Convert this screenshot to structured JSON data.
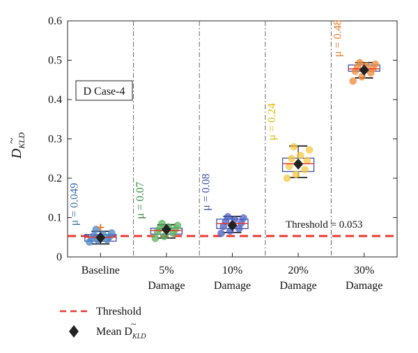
{
  "chart_data": {
    "type": "box",
    "title": "",
    "case_label": "D Case-4",
    "ylabel_main": "D",
    "ylabel_tilde": "~",
    "ylabel_sub": "KLD",
    "ylim": [
      0,
      0.6
    ],
    "yticks": [
      "0",
      "0.1",
      "0.2",
      "0.3",
      "0.4",
      "0.5",
      "0.6"
    ],
    "grid": "vertical dash-dot between categories",
    "threshold": {
      "value": 0.053,
      "label": "Threshold = 0.053",
      "color": "#e8392f"
    },
    "categories": [
      {
        "line1": "Baseline",
        "line2": "",
        "mean_label": "μ = 0.049",
        "mean": 0.049,
        "color": "#3a6ea5",
        "marker_color": "#4b86c6",
        "box": {
          "min": 0.033,
          "q1": 0.04,
          "median": 0.05,
          "q3": 0.057,
          "max": 0.065
        },
        "outliers": [
          0.075
        ],
        "points": [
          0.038,
          0.042,
          0.044,
          0.047,
          0.049,
          0.051,
          0.054,
          0.058,
          0.061,
          0.07
        ]
      },
      {
        "line1": "5%",
        "line2": "Damage",
        "mean_label": "μ = 0.07",
        "mean": 0.07,
        "color": "#2e8b3e",
        "marker_color": "#58b35a",
        "box": {
          "min": 0.048,
          "q1": 0.058,
          "median": 0.067,
          "q3": 0.073,
          "max": 0.082
        },
        "outliers": [],
        "points": [
          0.047,
          0.052,
          0.06,
          0.064,
          0.068,
          0.07,
          0.072,
          0.076,
          0.08,
          0.085
        ]
      },
      {
        "line1": "10%",
        "line2": "Damage",
        "mean_label": "μ = 0.08",
        "mean": 0.08,
        "color": "#3b4fa8",
        "marker_color": "#4a5fc4",
        "box": {
          "min": 0.062,
          "q1": 0.072,
          "median": 0.085,
          "q3": 0.096,
          "max": 0.103
        },
        "outliers": [],
        "points": [
          0.06,
          0.066,
          0.072,
          0.078,
          0.082,
          0.086,
          0.09,
          0.095,
          0.099,
          0.102
        ]
      },
      {
        "line1": "20%",
        "line2": "Damage",
        "mean_label": "μ = 0.24",
        "mean": 0.236,
        "color": "#e5b800",
        "marker_color": "#f5c842",
        "box": {
          "min": 0.202,
          "q1": 0.217,
          "median": 0.237,
          "q3": 0.251,
          "max": 0.282
        },
        "outliers": [],
        "points": [
          0.2,
          0.21,
          0.222,
          0.23,
          0.238,
          0.245,
          0.25,
          0.258,
          0.272,
          0.28
        ]
      },
      {
        "line1": "30%",
        "line2": "Damage",
        "mean_label": "μ = 0.48",
        "mean": 0.475,
        "color": "#e8771e",
        "marker_color": "#f08a3a",
        "box": {
          "min": 0.455,
          "q1": 0.472,
          "median": 0.478,
          "q3": 0.488,
          "max": 0.494
        },
        "outliers": [],
        "points": [
          0.447,
          0.458,
          0.468,
          0.472,
          0.476,
          0.479,
          0.482,
          0.486,
          0.49,
          0.494
        ]
      }
    ],
    "box_edge_color": "#3b4fa8",
    "median_color": "#e8392f",
    "legend": {
      "threshold_label": "Threshold",
      "mean_label_main": "Mean D",
      "mean_label_tilde": "~",
      "mean_label_sub": "KLD"
    }
  }
}
